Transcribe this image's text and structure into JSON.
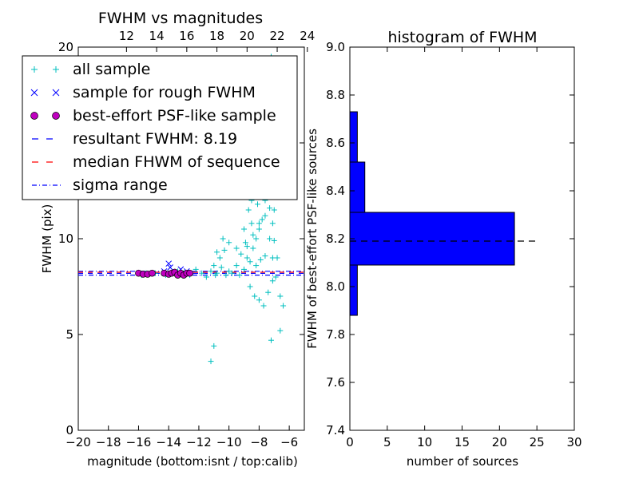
{
  "chart_data": [
    {
      "type": "scatter",
      "title": "FWHM vs magnitudes",
      "xlabel": "magnitude (bottom:isnt / top:calib)",
      "ylabel": "FWHM (pix)",
      "xlim": [
        -20,
        -5
      ],
      "ylim": [
        0,
        20
      ],
      "x_ticks": [
        "−20",
        "−18",
        "−16",
        "−14",
        "−12",
        "−10",
        "−8",
        "−6"
      ],
      "x_tick_values": [
        -20,
        -18,
        -16,
        -14,
        -12,
        -10,
        -8,
        -6
      ],
      "y_ticks": [
        "0",
        "5",
        "10",
        "15",
        "20"
      ],
      "y_tick_values": [
        0,
        5,
        10,
        15,
        20
      ],
      "top_axis_ticks": [
        "12",
        "14",
        "16",
        "18",
        "20",
        "22",
        "24"
      ],
      "top_axis_values": [
        -16.8,
        -14.8,
        -12.8,
        -10.8,
        -8.8,
        -6.8,
        -4.8
      ],
      "legend": {
        "placement": "upper-left",
        "entries": [
          {
            "label": "all sample",
            "marker": "+",
            "color": "#00bfbf"
          },
          {
            "label": "sample for rough FWHM",
            "marker": "x",
            "color": "#0000ff"
          },
          {
            "label": "best-effort PSF-like sample",
            "marker": "o",
            "color": "#bf00bf"
          },
          {
            "label": "resultant FWHM: 8.19",
            "line": "dashed",
            "color": "#0000ff"
          },
          {
            "label": "median FHWM of sequence",
            "line": "dashed",
            "color": "#ff0000"
          },
          {
            "label": "sigma range",
            "line": "dashdot",
            "color": "#0000ff"
          }
        ]
      },
      "lines": {
        "resultant_fwhm": 8.19,
        "median_fwhm": 8.25,
        "sigma_low": 8.1,
        "sigma_high": 8.3
      },
      "series": [
        {
          "name": "all sample",
          "color": "#00bfbf",
          "marker": "+",
          "x": [
            -16,
            -15.8,
            -15.5,
            -14.9,
            -14.2,
            -13.8,
            -13.4,
            -13.0,
            -12.6,
            -12.2,
            -11.8,
            -11.5,
            -11.2,
            -11.0,
            -10.9,
            -10.8,
            -10.5,
            -10.2,
            -10.0,
            -9.8,
            -9.5,
            -9.3,
            -9.0,
            -8.8,
            -8.6,
            -8.4,
            -8.2,
            -8.0,
            -7.8,
            -7.6,
            -7.4,
            -7.2,
            -7.0,
            -6.8,
            -6.6,
            -6.4,
            -9.5,
            -9.0,
            -8.7,
            -8.5,
            -8.3,
            -8.1,
            -7.9,
            -7.7,
            -7.5,
            -7.3,
            -7.1,
            -6.9,
            -8.6,
            -8.3,
            -8.0,
            -7.7,
            -7.4,
            -7.1,
            -8.9,
            -8.5,
            -8.1,
            -7.8,
            -7.5,
            -7.2,
            -9.2,
            -8.8,
            -8.4,
            -8.0,
            -7.6,
            -7.3,
            -7.0,
            -11.0,
            -11.2,
            -10.6,
            -10.3,
            -10.0,
            -8.0,
            -7.6,
            -7.2,
            -6.8,
            -9.5,
            -9.2,
            -8.9,
            -8.6,
            -8.3,
            -8.0,
            -7.7,
            -7.4,
            -7.1,
            -10.4,
            -10.8,
            -7.2,
            -6.6,
            -8.2,
            -7.9,
            -7.6
          ],
          "y": [
            8.2,
            8.1,
            8.2,
            8.2,
            8.1,
            8.2,
            8.3,
            8.2,
            8.1,
            8.4,
            8.2,
            8.0,
            8.3,
            8.6,
            8.1,
            8.2,
            8.5,
            8.1,
            8.3,
            8.2,
            8.6,
            8.1,
            8.4,
            9.0,
            8.8,
            9.5,
            10.0,
            10.5,
            11.0,
            12.0,
            13.0,
            12.5,
            11.5,
            9.0,
            7.0,
            6.5,
            9.5,
            10.5,
            11.5,
            12.0,
            13.0,
            14.0,
            15.0,
            16.0,
            13.5,
            10.0,
            9.0,
            8.0,
            7.5,
            7.0,
            6.8,
            6.5,
            7.2,
            7.8,
            9.8,
            10.8,
            11.8,
            12.8,
            13.8,
            14.5,
            9.2,
            9.6,
            10.2,
            10.8,
            11.2,
            11.6,
            9.9,
            4.4,
            3.6,
            9.0,
            9.4,
            9.8,
            16.2,
            18.5,
            19.5,
            17.0,
            12.4,
            12.8,
            13.2,
            13.6,
            14.2,
            14.8,
            15.4,
            12.2,
            10.8,
            10.0,
            9.3,
            4.7,
            5.2,
            8.6,
            8.9,
            9.1
          ]
        },
        {
          "name": "sample for rough FWHM",
          "color": "#0000ff",
          "marker": "x",
          "x": [
            -14.0,
            -13.9,
            -13.2,
            -12.8,
            -14.3
          ],
          "y": [
            8.7,
            8.5,
            8.4,
            8.3,
            8.3
          ]
        },
        {
          "name": "best-effort PSF-like sample",
          "color": "#bf00bf",
          "marker": "o",
          "x": [
            -16.0,
            -15.7,
            -15.4,
            -15.1,
            -14.3,
            -14.0,
            -13.8,
            -13.6,
            -13.4,
            -13.2,
            -13.0,
            -12.8,
            -12.6
          ],
          "y": [
            8.2,
            8.15,
            8.15,
            8.2,
            8.2,
            8.15,
            8.2,
            8.25,
            8.1,
            8.2,
            8.1,
            8.2,
            8.2
          ]
        }
      ]
    },
    {
      "type": "bar",
      "orientation": "horizontal",
      "title": "histogram of FWHM",
      "xlabel": "number of sources",
      "ylabel": "FWHM of best-effort PSF-like sources",
      "xlim": [
        0,
        30
      ],
      "ylim": [
        7.4,
        9.0
      ],
      "x_ticks": [
        "0",
        "5",
        "10",
        "15",
        "20",
        "25",
        "30"
      ],
      "x_tick_values": [
        0,
        5,
        10,
        15,
        20,
        25,
        30
      ],
      "y_ticks": [
        "7.4",
        "7.6",
        "7.8",
        "8.0",
        "8.2",
        "8.4",
        "8.6",
        "8.8",
        "9.0"
      ],
      "y_tick_values": [
        7.4,
        7.6,
        7.8,
        8.0,
        8.2,
        8.4,
        8.6,
        8.8,
        9.0
      ],
      "bins": [
        {
          "low": 7.88,
          "high": 8.09,
          "count": 1
        },
        {
          "low": 8.09,
          "high": 8.31,
          "count": 22
        },
        {
          "low": 8.31,
          "high": 8.52,
          "count": 2
        },
        {
          "low": 8.52,
          "high": 8.73,
          "count": 1
        }
      ],
      "bar_color": "#0000ff",
      "reference_line": 8.19
    }
  ]
}
